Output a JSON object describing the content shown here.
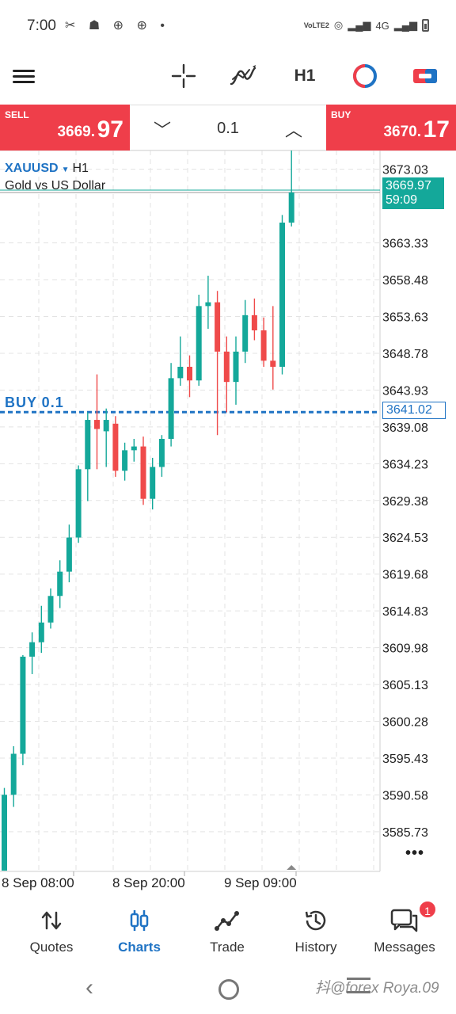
{
  "status_bar": {
    "time": "7:00",
    "left_icons": "✂ ☗ ⊕ ⊕ •",
    "volte": "VoLTE2",
    "network": "4G"
  },
  "toolbar": {
    "menu_icon": "hamburger-icon",
    "crosshair_icon": "crosshair-icon",
    "indicator_icon": "indicator-icon",
    "timeframe": "H1",
    "one_click_icon": "one-click-trading-icon",
    "trade_icon": "new-order-icon"
  },
  "price_bar": {
    "sell_label": "SELL",
    "sell_price": "3669.",
    "sell_pips": "97",
    "volume": "0.1",
    "buy_label": "BUY",
    "buy_price": "3670.",
    "buy_pips": "17"
  },
  "chart": {
    "symbol": "XAUUSD",
    "timeframe": "H1",
    "description": "Gold vs US Dollar",
    "current_price": "3669.97",
    "bar_timer": "59:09",
    "order_label": "BUY 0.1",
    "order_price": "3641.02",
    "more_icon": "more-horizontal-icon"
  },
  "chart_data": {
    "type": "candlestick",
    "symbol": "XAUUSD",
    "timeframe": "H1",
    "y_ticks": [
      "3673.03",
      "3663.33",
      "3658.48",
      "3653.63",
      "3648.78",
      "3643.93",
      "3639.08",
      "3634.23",
      "3629.38",
      "3624.53",
      "3619.68",
      "3614.83",
      "3609.98",
      "3605.13",
      "3600.28",
      "3595.43",
      "3590.58",
      "3585.73"
    ],
    "x_ticks": [
      "8 Sep 08:00",
      "8 Sep 20:00",
      "9 Sep 09:00"
    ],
    "ylim": [
      3580.5,
      3675.5
    ],
    "bid_line": 3669.97,
    "order_line": 3641.02,
    "colors": {
      "up": "#14a89a",
      "down": "#ef4a4a",
      "order": "#1f73c4",
      "grid": "#e3e3e3"
    },
    "candles": [
      {
        "o": 3580.6,
        "h": 3591.5,
        "l": 3580.6,
        "c": 3590.6
      },
      {
        "o": 3590.6,
        "h": 3597.0,
        "l": 3589.0,
        "c": 3596.0
      },
      {
        "o": 3596.0,
        "h": 3609.0,
        "l": 3594.5,
        "c": 3608.8
      },
      {
        "o": 3608.8,
        "h": 3612.0,
        "l": 3606.5,
        "c": 3610.7
      },
      {
        "o": 3610.7,
        "h": 3615.5,
        "l": 3609.3,
        "c": 3613.3
      },
      {
        "o": 3613.3,
        "h": 3617.8,
        "l": 3612.5,
        "c": 3616.8
      },
      {
        "o": 3616.8,
        "h": 3621.5,
        "l": 3615.2,
        "c": 3620.0
      },
      {
        "o": 3620.0,
        "h": 3626.2,
        "l": 3618.6,
        "c": 3624.5
      },
      {
        "o": 3624.5,
        "h": 3634.0,
        "l": 3623.8,
        "c": 3633.5
      },
      {
        "o": 3633.5,
        "h": 3641.0,
        "l": 3629.3,
        "c": 3640.0
      },
      {
        "o": 3640.0,
        "h": 3646.0,
        "l": 3633.5,
        "c": 3638.8
      },
      {
        "o": 3638.5,
        "h": 3641.5,
        "l": 3633.8,
        "c": 3640.0
      },
      {
        "o": 3639.5,
        "h": 3640.5,
        "l": 3632.5,
        "c": 3633.3
      },
      {
        "o": 3633.3,
        "h": 3637.0,
        "l": 3632.0,
        "c": 3636.0
      },
      {
        "o": 3636.0,
        "h": 3637.5,
        "l": 3634.5,
        "c": 3636.5
      },
      {
        "o": 3636.5,
        "h": 3637.8,
        "l": 3628.8,
        "c": 3629.6
      },
      {
        "o": 3629.6,
        "h": 3635.0,
        "l": 3628.2,
        "c": 3633.8
      },
      {
        "o": 3633.8,
        "h": 3638.0,
        "l": 3632.5,
        "c": 3637.5
      },
      {
        "o": 3637.5,
        "h": 3647.5,
        "l": 3636.5,
        "c": 3645.5
      },
      {
        "o": 3645.5,
        "h": 3651.0,
        "l": 3644.5,
        "c": 3647.0
      },
      {
        "o": 3647.0,
        "h": 3648.5,
        "l": 3643.0,
        "c": 3645.2
      },
      {
        "o": 3645.2,
        "h": 3656.5,
        "l": 3644.5,
        "c": 3655.0
      },
      {
        "o": 3655.0,
        "h": 3659.0,
        "l": 3652.0,
        "c": 3655.5
      },
      {
        "o": 3655.5,
        "h": 3657.0,
        "l": 3638.0,
        "c": 3649.0
      },
      {
        "o": 3649.0,
        "h": 3651.0,
        "l": 3641.0,
        "c": 3645.0
      },
      {
        "o": 3645.0,
        "h": 3651.0,
        "l": 3642.0,
        "c": 3649.0
      },
      {
        "o": 3649.0,
        "h": 3655.8,
        "l": 3647.5,
        "c": 3653.8
      },
      {
        "o": 3653.8,
        "h": 3656.0,
        "l": 3650.5,
        "c": 3651.8
      },
      {
        "o": 3651.8,
        "h": 3653.5,
        "l": 3647.0,
        "c": 3647.8
      },
      {
        "o": 3647.8,
        "h": 3655.0,
        "l": 3644.0,
        "c": 3647.0
      },
      {
        "o": 3647.0,
        "h": 3667.0,
        "l": 3646.0,
        "c": 3666.0
      },
      {
        "o": 3666.0,
        "h": 3675.5,
        "l": 3665.5,
        "c": 3669.97
      }
    ]
  },
  "bottom_nav": {
    "items": [
      {
        "label": "Quotes",
        "icon": "quotes-icon"
      },
      {
        "label": "Charts",
        "icon": "charts-icon"
      },
      {
        "label": "Trade",
        "icon": "trade-icon"
      },
      {
        "label": "History",
        "icon": "history-icon"
      },
      {
        "label": "Messages",
        "icon": "messages-icon",
        "badge": "1"
      }
    ]
  },
  "system_nav": {
    "watermark": "抖@forex Roya.09"
  }
}
